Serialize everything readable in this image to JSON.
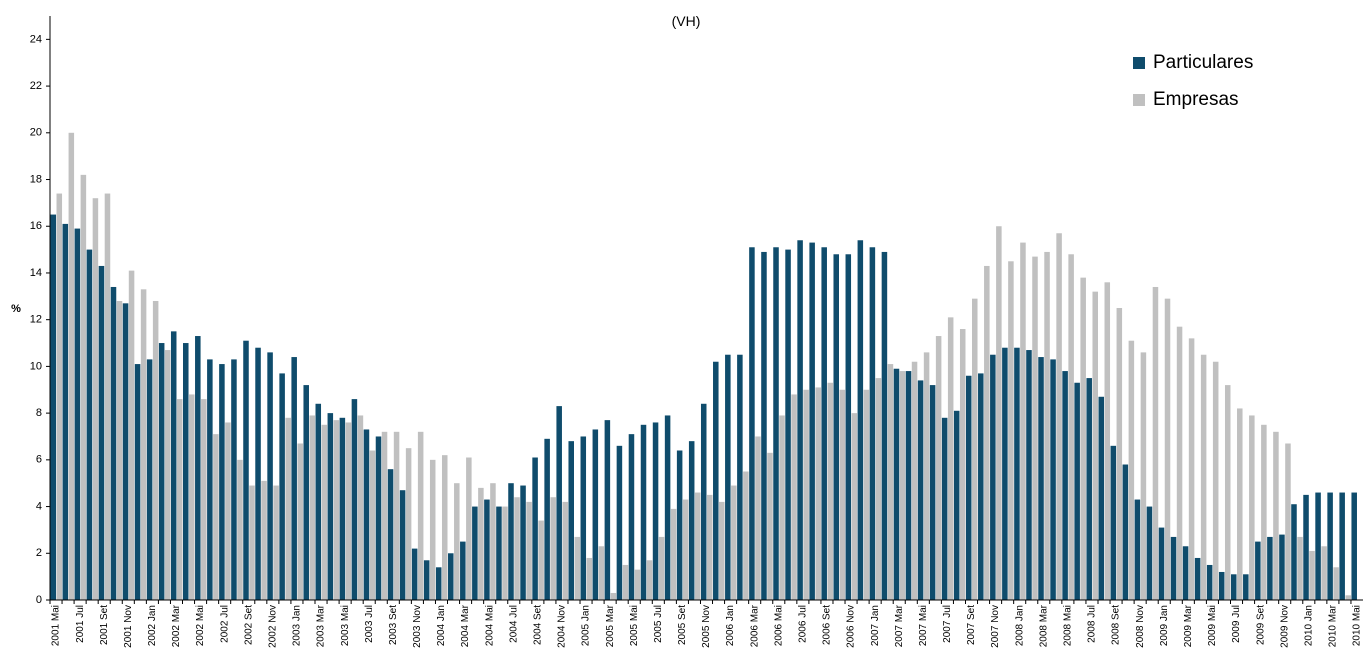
{
  "chart_data": {
    "type": "bar",
    "title": "(VH)",
    "y_label": "%",
    "categories": [
      "2001 Mai",
      null,
      "2001 Jul",
      null,
      "2001 Set",
      null,
      "2001 Nov",
      null,
      "2002 Jan",
      null,
      "2002 Mar",
      null,
      "2002 Mai",
      null,
      "2002 Jul",
      null,
      "2002 Set",
      null,
      "2002 Nov",
      null,
      "2003 Jan",
      null,
      "2003 Mar",
      null,
      "2003 Mai",
      null,
      "2003 Jul",
      null,
      "2003 Set",
      null,
      "2003 Nov",
      null,
      "2004 Jan",
      null,
      "2004 Mar",
      null,
      "2004 Mai",
      null,
      "2004 Jul",
      null,
      "2004 Set",
      null,
      "2004 Nov",
      null,
      "2005 Jan",
      null,
      "2005 Mar",
      null,
      "2005 Mai",
      null,
      "2005 Jul",
      null,
      "2005 Set",
      null,
      "2005 Nov",
      null,
      "2006 Jan",
      null,
      "2006 Mar",
      null,
      "2006 Mai",
      null,
      "2006 Jul",
      null,
      "2006 Set",
      null,
      "2006 Nov",
      null,
      "2007 Jan",
      null,
      "2007 Mar",
      null,
      "2007 Mai",
      null,
      "2007 Jul",
      null,
      "2007 Set",
      null,
      "2007 Nov",
      null,
      "2008 Jan",
      null,
      "2008 Mar",
      null,
      "2008 Mai",
      null,
      "2008 Jul",
      null,
      "2008 Set",
      null,
      "2008 Nov",
      null,
      "2009 Jan",
      null,
      "2009 Mar",
      null,
      "2009 Mai",
      null,
      "2009 Jul",
      null,
      "2009 Set",
      null,
      "2009 Nov",
      null,
      "2010 Jan",
      null,
      "2010 Mar",
      null,
      "2010 Mai"
    ],
    "series": [
      {
        "name": "Particulares",
        "color": "#0f4c6c",
        "values": [
          16.5,
          16.1,
          15.9,
          15.0,
          14.3,
          13.4,
          12.7,
          10.1,
          10.3,
          11.0,
          11.5,
          11.0,
          11.3,
          10.3,
          10.1,
          10.3,
          11.1,
          10.8,
          10.6,
          9.7,
          10.4,
          9.2,
          8.4,
          8.0,
          7.8,
          8.6,
          7.3,
          7.0,
          5.6,
          4.7,
          2.2,
          1.7,
          1.4,
          2.0,
          2.5,
          4.0,
          4.3,
          4.0,
          5.0,
          4.9,
          6.1,
          6.9,
          8.3,
          6.8,
          7.0,
          7.3,
          7.7,
          6.6,
          7.1,
          7.5,
          7.6,
          7.9,
          6.4,
          6.8,
          8.4,
          10.2,
          10.5,
          10.5,
          15.1,
          14.9,
          15.1,
          15.0,
          15.4,
          15.3,
          15.1,
          14.8,
          14.8,
          15.4,
          15.1,
          14.9,
          9.9,
          9.8,
          9.4,
          9.2,
          7.8,
          8.1,
          9.6,
          9.7,
          10.5,
          10.8,
          10.8,
          10.7,
          10.4,
          10.3,
          9.8,
          9.3,
          9.5,
          8.7,
          6.6,
          5.8,
          4.3,
          4.0,
          3.1,
          2.7,
          2.3,
          1.8,
          1.5,
          1.2,
          1.1,
          1.1,
          2.5,
          2.7,
          2.8,
          4.1,
          4.5,
          4.6,
          4.6,
          4.6,
          4.6
        ]
      },
      {
        "name": "Empresas",
        "color": "#c0c0c0",
        "values": [
          17.4,
          20.0,
          18.2,
          17.2,
          17.4,
          12.8,
          14.1,
          13.3,
          12.8,
          10.7,
          8.6,
          8.8,
          8.6,
          7.1,
          7.6,
          6.0,
          4.9,
          5.1,
          4.9,
          7.8,
          6.7,
          7.9,
          7.5,
          7.7,
          7.6,
          7.9,
          6.4,
          7.2,
          7.2,
          6.5,
          7.2,
          6.0,
          6.2,
          5.0,
          6.1,
          4.8,
          5.0,
          4.0,
          4.4,
          4.2,
          3.4,
          4.4,
          4.2,
          2.7,
          1.8,
          2.3,
          0.3,
          1.5,
          1.3,
          1.7,
          2.7,
          3.9,
          4.3,
          4.6,
          4.5,
          4.2,
          4.9,
          5.5,
          7.0,
          6.3,
          7.9,
          8.8,
          9.0,
          9.1,
          9.3,
          9.0,
          8.0,
          9.0,
          9.5,
          10.1,
          9.8,
          10.2,
          10.6,
          11.3,
          12.1,
          11.6,
          12.9,
          14.3,
          16.0,
          14.5,
          15.3,
          14.7,
          14.9,
          15.7,
          14.8,
          13.8,
          13.2,
          13.6,
          12.5,
          11.1,
          10.6,
          13.4,
          12.9,
          11.7,
          11.2,
          10.5,
          10.2,
          9.2,
          8.2,
          7.9,
          7.5,
          7.2,
          6.7,
          2.7,
          2.1,
          2.3,
          1.4,
          0.2,
          null
        ]
      }
    ],
    "ylim": [
      0,
      25
    ],
    "yticks": [
      0,
      2,
      4,
      6,
      8,
      10,
      12,
      14,
      16,
      18,
      20,
      22,
      24
    ]
  }
}
